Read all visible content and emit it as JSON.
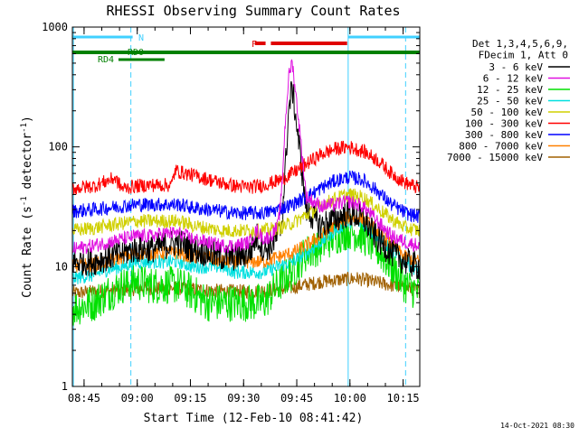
{
  "chart_data": {
    "type": "line",
    "title": "RHESSI Observing Summary Count Rates",
    "xlabel": "Start Time (12-Feb-10 08:41:42)",
    "ylabel_main": "Count Rate (s",
    "ylabel_sup": "-1",
    "ylabel_mid": " detector",
    "ylabel_sup2": "-1",
    "ylabel_end": ")",
    "footer": "14-Oct-2021 08:30",
    "x_unit": "minutes after 08:41:42",
    "xlim": [
      0,
      98
    ],
    "ylim": [
      1,
      1000
    ],
    "yscale": "log",
    "x_ticks": [
      {
        "x": 3.3,
        "label": "08:45"
      },
      {
        "x": 18.3,
        "label": "09:00"
      },
      {
        "x": 33.3,
        "label": "09:15"
      },
      {
        "x": 48.3,
        "label": "09:30"
      },
      {
        "x": 63.3,
        "label": "09:45"
      },
      {
        "x": 78.3,
        "label": "10:00"
      },
      {
        "x": 93.3,
        "label": "10:15"
      }
    ],
    "y_ticks": [
      {
        "y": 1,
        "label": "1"
      },
      {
        "y": 10,
        "label": "10"
      },
      {
        "y": 100,
        "label": "100"
      },
      {
        "y": 1000,
        "label": "1000"
      }
    ],
    "legend_header": [
      "Det 1,3,4,5,6,9,",
      "FDecim 1, Att 0"
    ],
    "series": [
      {
        "name": "3 - 6 keV",
        "color": "#000000",
        "x": [
          0,
          6,
          10,
          14,
          18,
          22,
          26,
          30,
          34,
          38,
          42,
          46,
          50,
          52,
          54,
          56,
          58,
          59,
          60,
          61,
          62,
          64,
          66,
          70,
          74,
          78,
          82,
          86,
          90,
          94,
          98
        ],
        "y": [
          11,
          11,
          12,
          13,
          14,
          14,
          15,
          16,
          14,
          13,
          12,
          12,
          13,
          18,
          14,
          15,
          18,
          22,
          60,
          200,
          320,
          100,
          30,
          22,
          25,
          28,
          25,
          17,
          13,
          11,
          10
        ]
      },
      {
        "name": "6 - 12 keV",
        "color": "#e010e0",
        "x": [
          0,
          6,
          10,
          14,
          18,
          22,
          26,
          30,
          34,
          38,
          42,
          46,
          50,
          52,
          54,
          56,
          58,
          59,
          60,
          61,
          62,
          64,
          66,
          70,
          74,
          78,
          82,
          86,
          90,
          94,
          98
        ],
        "y": [
          14,
          15,
          16,
          17,
          18,
          18,
          19,
          19,
          17,
          16,
          15,
          15,
          16,
          20,
          17,
          18,
          22,
          40,
          150,
          380,
          520,
          150,
          38,
          32,
          33,
          35,
          32,
          24,
          18,
          16,
          15
        ]
      },
      {
        "name": "12 - 25 keV",
        "color": "#00e000",
        "x": [
          0,
          6,
          10,
          14,
          18,
          22,
          26,
          30,
          34,
          38,
          42,
          46,
          50,
          54,
          58,
          60,
          62,
          64,
          66,
          70,
          74,
          78,
          82,
          86,
          90,
          94,
          98
        ],
        "y": [
          4.5,
          5,
          6,
          7,
          7.5,
          7,
          7,
          7,
          6,
          5,
          5,
          5,
          5,
          5,
          7,
          8,
          9,
          11,
          13,
          15,
          18,
          20,
          18,
          14,
          10,
          7,
          6
        ]
      },
      {
        "name": "25 - 50 keV",
        "color": "#00e0e0",
        "x": [
          0,
          6,
          10,
          14,
          18,
          22,
          26,
          30,
          34,
          38,
          42,
          46,
          50,
          54,
          58,
          62,
          66,
          70,
          74,
          78,
          82,
          86,
          90,
          94,
          98
        ],
        "y": [
          8,
          8.5,
          9.5,
          10,
          11,
          11,
          11,
          11,
          10,
          10,
          10,
          9,
          9,
          9,
          10,
          11,
          13,
          16,
          20,
          24,
          23,
          18,
          14,
          11,
          9
        ]
      },
      {
        "name": "50 - 100 keV",
        "color": "#d0d000",
        "x": [
          0,
          6,
          10,
          14,
          18,
          22,
          26,
          30,
          34,
          38,
          42,
          46,
          50,
          54,
          58,
          62,
          66,
          70,
          74,
          78,
          82,
          86,
          90,
          94,
          98
        ],
        "y": [
          20,
          21,
          22,
          23,
          24,
          24,
          24,
          24,
          22,
          21,
          20,
          20,
          20,
          20,
          21,
          23,
          27,
          32,
          37,
          40,
          38,
          31,
          25,
          21,
          20
        ]
      },
      {
        "name": "100 - 300 keV",
        "color": "#ff0000",
        "x": [
          0,
          6,
          12,
          14,
          18,
          22,
          26,
          28,
          29,
          30,
          34,
          38,
          42,
          46,
          50,
          54,
          58,
          62,
          66,
          70,
          74,
          78,
          82,
          86,
          90,
          94,
          98
        ],
        "y": [
          45,
          47,
          55,
          45,
          47,
          48,
          48,
          48,
          64,
          62,
          58,
          54,
          50,
          47,
          46,
          48,
          52,
          60,
          72,
          86,
          96,
          100,
          92,
          78,
          60,
          50,
          45
        ]
      },
      {
        "name": "300 - 800 keV",
        "color": "#0000ff",
        "x": [
          0,
          6,
          10,
          14,
          18,
          22,
          26,
          30,
          34,
          38,
          42,
          46,
          50,
          54,
          58,
          62,
          66,
          70,
          74,
          78,
          82,
          86,
          90,
          94,
          98
        ],
        "y": [
          29,
          30,
          31,
          32,
          33,
          33,
          33,
          33,
          31,
          30,
          29,
          28,
          28,
          28,
          30,
          33,
          38,
          45,
          52,
          56,
          53,
          43,
          33,
          28,
          26
        ]
      },
      {
        "name": "800 - 7000 keV",
        "color": "#ff8000",
        "x": [
          0,
          6,
          10,
          14,
          18,
          22,
          26,
          30,
          34,
          38,
          42,
          46,
          50,
          54,
          58,
          62,
          66,
          70,
          74,
          78,
          82,
          86,
          90,
          94,
          98
        ],
        "y": [
          10,
          10.5,
          11,
          12,
          13,
          13,
          13,
          13,
          12,
          12,
          11,
          11,
          11,
          11,
          12,
          13,
          15,
          18,
          22,
          26,
          25,
          20,
          15,
          12,
          11
        ]
      },
      {
        "name": "7000 - 15000 keV",
        "color": "#a06000",
        "x": [
          0,
          10,
          20,
          30,
          40,
          50,
          60,
          70,
          80,
          90,
          98
        ],
        "y": [
          6,
          6.3,
          6.6,
          6.6,
          6.3,
          6.2,
          6.5,
          7.5,
          8,
          7,
          6.3
        ]
      }
    ],
    "vlines": [
      {
        "x": 0.3,
        "style": "solid",
        "color": "#40d0ff"
      },
      {
        "x": 16.5,
        "style": "dashed",
        "color": "#40d0ff"
      },
      {
        "x": 77.8,
        "style": "solid",
        "color": "#40d0ff"
      },
      {
        "x": 94,
        "style": "dashed",
        "color": "#40d0ff"
      }
    ],
    "flags": [
      {
        "label": "N",
        "color": "#40d0ff",
        "segments": [
          [
            0,
            17
          ],
          [
            77.8,
            98
          ]
        ]
      },
      {
        "label": "F",
        "color": "#e00000",
        "segments": [
          [
            51.5,
            54.5
          ],
          [
            56,
            77.5
          ]
        ]
      },
      {
        "label": "RD0",
        "color": "#008000",
        "segments": [
          [
            0,
            98
          ]
        ]
      },
      {
        "label": "RD4",
        "color": "#008000",
        "segments": [
          [
            13,
            26
          ]
        ]
      }
    ]
  }
}
